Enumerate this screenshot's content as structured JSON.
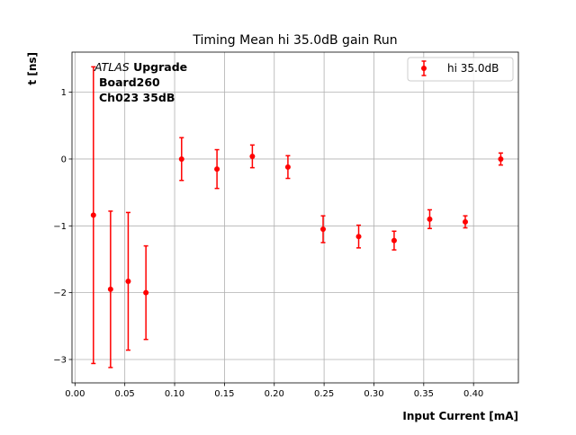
{
  "chart_data": {
    "type": "scatter",
    "title": "Timing Mean hi 35.0dB gain Run",
    "xlabel": "Input Current [mA]",
    "ylabel": "t [ns]",
    "xlim": [
      -0.003,
      0.445
    ],
    "ylim": [
      -3.35,
      1.6
    ],
    "xticks": [
      0.0,
      0.05,
      0.1,
      0.15,
      0.2,
      0.25,
      0.3,
      0.35,
      0.4
    ],
    "xtick_labels": [
      "0.00",
      "0.05",
      "0.10",
      "0.15",
      "0.20",
      "0.25",
      "0.30",
      "0.35",
      "0.40"
    ],
    "yticks": [
      -3,
      -2,
      -1,
      0,
      1
    ],
    "ytick_labels": [
      "−3",
      "−2",
      "−1",
      "0",
      "1"
    ],
    "grid": true,
    "legend_position": "top-right",
    "annotation": {
      "line1_italic": "ATLAS",
      "line1_bold": " Upgrade",
      "line2": "Board260",
      "line3": "Ch023 35dB"
    },
    "series": [
      {
        "name": "hi 35.0dB",
        "color": "#ff0000",
        "points": [
          {
            "x": 0.0185,
            "y": -0.84,
            "err": 2.22
          },
          {
            "x": 0.0357,
            "y": -1.95,
            "err": 1.17
          },
          {
            "x": 0.0534,
            "y": -1.83,
            "err": 1.03
          },
          {
            "x": 0.0712,
            "y": -2.0,
            "err": 0.7
          },
          {
            "x": 0.107,
            "y": 0.0,
            "err": 0.32
          },
          {
            "x": 0.1425,
            "y": -0.15,
            "err": 0.29
          },
          {
            "x": 0.178,
            "y": 0.04,
            "err": 0.17
          },
          {
            "x": 0.2137,
            "y": -0.12,
            "err": 0.17
          },
          {
            "x": 0.249,
            "y": -1.05,
            "err": 0.2
          },
          {
            "x": 0.2847,
            "y": -1.16,
            "err": 0.17
          },
          {
            "x": 0.3203,
            "y": -1.22,
            "err": 0.14
          },
          {
            "x": 0.356,
            "y": -0.9,
            "err": 0.14
          },
          {
            "x": 0.3917,
            "y": -0.94,
            "err": 0.09
          },
          {
            "x": 0.4273,
            "y": 0.0,
            "err": 0.09
          }
        ]
      }
    ]
  }
}
